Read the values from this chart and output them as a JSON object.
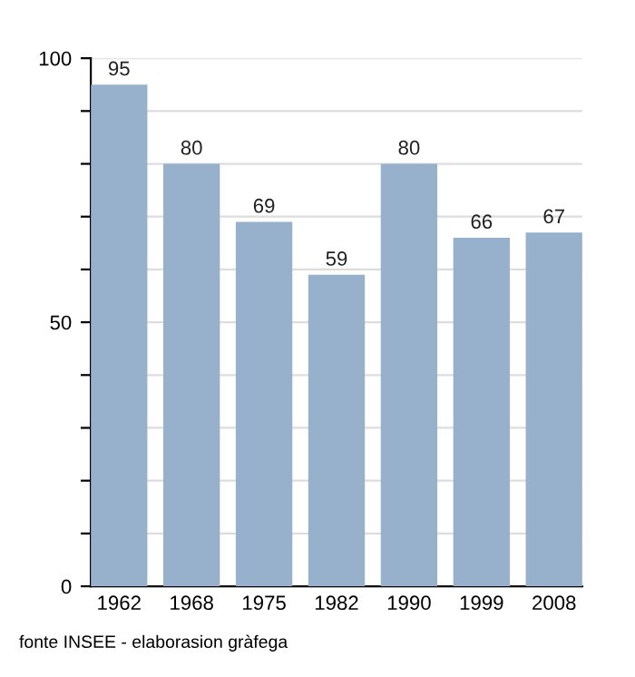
{
  "chart_data": {
    "type": "bar",
    "categories": [
      "1962",
      "1968",
      "1975",
      "1982",
      "1990",
      "1999",
      "2008"
    ],
    "values": [
      95,
      80,
      69,
      59,
      80,
      66,
      67
    ],
    "color": "#97b1cc",
    "data_labels": true,
    "grid": "y",
    "ylim": [
      0,
      100
    ],
    "yticks": [
      0,
      {
        "value": 10,
        "label": null
      },
      {
        "value": 20,
        "label": null
      },
      {
        "value": 30,
        "label": null
      },
      {
        "value": 40,
        "label": null
      },
      50,
      {
        "value": 60,
        "label": null
      },
      {
        "value": 70,
        "label": null
      },
      {
        "value": 80,
        "label": null
      },
      {
        "value": 90,
        "label": null
      },
      100
    ],
    "annotations": [
      "fonte INSEE - elaborasion gràfega"
    ]
  }
}
